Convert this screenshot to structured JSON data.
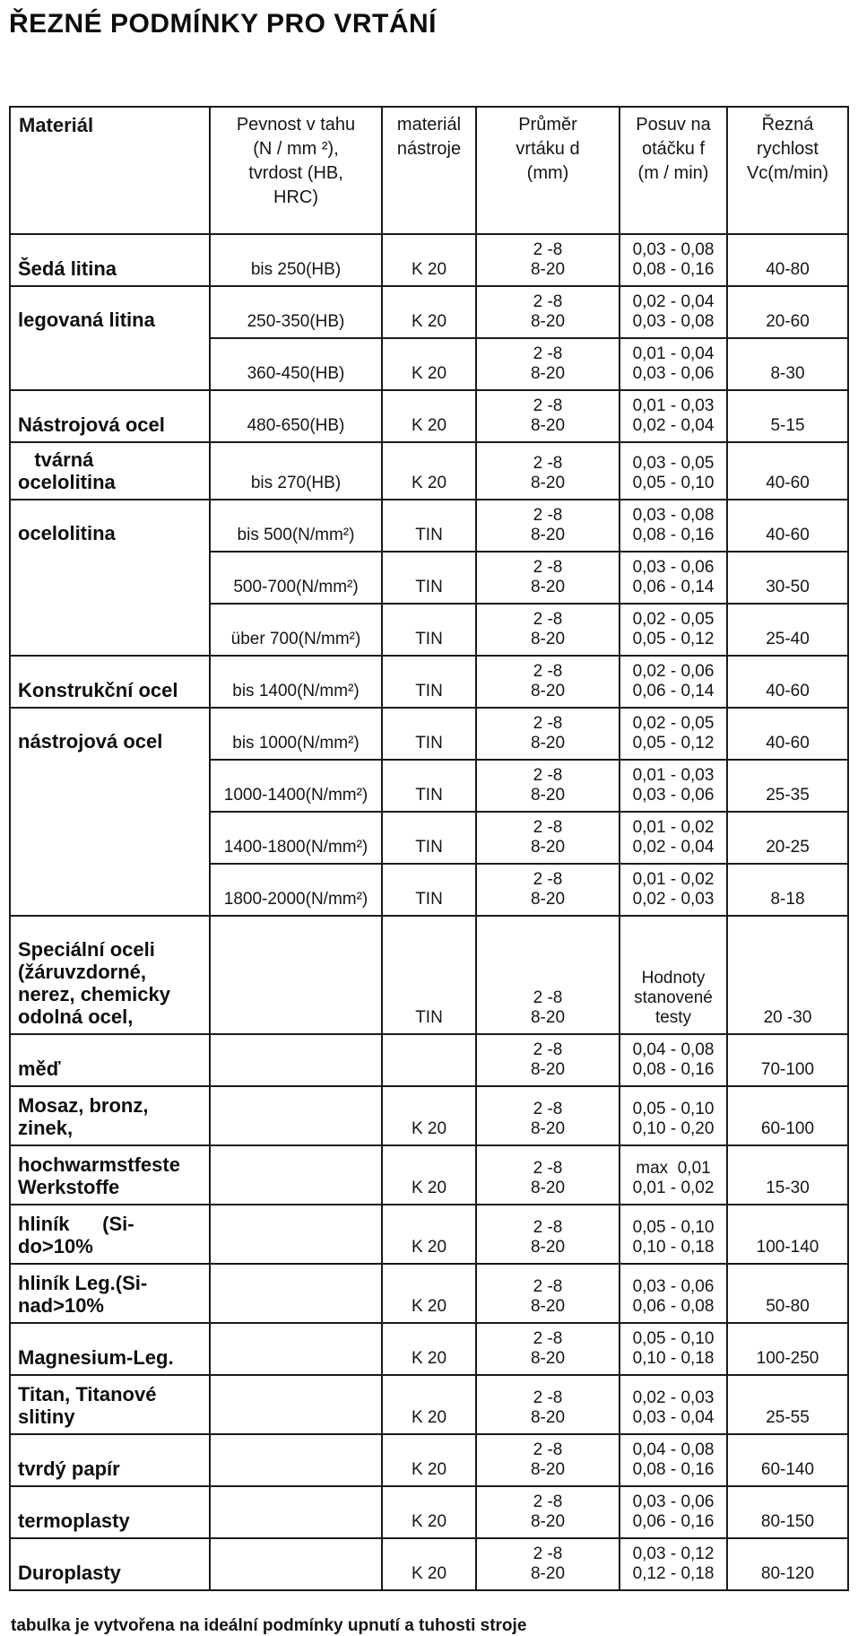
{
  "page": {
    "title": "ŘEZNÉ PODMÍNKY PRO VRTÁNÍ",
    "footnote": "tabulka je vytvořena na ideální podmínky upnutí a tuhosti stroje"
  },
  "table": {
    "headers": [
      {
        "id": "material",
        "label": "Materiál"
      },
      {
        "id": "tensile",
        "label": "Pevnost v tahu\n(N / mm ²),\ntvrdost (HB,\nHRC)"
      },
      {
        "id": "tool",
        "label": "materiál\nnástroje"
      },
      {
        "id": "diameter",
        "label": "Průměr\nvrtáku d\n(mm)"
      },
      {
        "id": "feed",
        "label": "Posuv na\notáčku f\n(m / min)"
      },
      {
        "id": "speed",
        "label": "Řezná\nrychlost\nVc(m/min)"
      }
    ],
    "rows": [
      {
        "material": "Šedá litina",
        "span": 1,
        "tensile": "bis 250(HB)",
        "tool": "K 20",
        "diameter": "2 -8\n8-20",
        "feed": "0,03 - 0,08\n0,08 - 0,16",
        "speed": "40-80"
      },
      {
        "material": "legovaná litina",
        "span": 2,
        "tensile": "250-350(HB)",
        "tool": "K 20",
        "diameter": "2 -8\n8-20",
        "feed": "0,02 - 0,04\n0,03 - 0,08",
        "speed": "20-60"
      },
      {
        "material": null,
        "tensile": "360-450(HB)",
        "tool": "K 20",
        "diameter": "2 -8\n8-20",
        "feed": "0,01 - 0,04\n0,03 - 0,06",
        "speed": "8-30"
      },
      {
        "material": "Nástrojová ocel",
        "span": 1,
        "tensile": "480-650(HB)",
        "tool": "K 20",
        "diameter": "2 -8\n8-20",
        "feed": "0,01 - 0,03\n0,02 - 0,04",
        "speed": "5-15"
      },
      {
        "material": "   tvárná\nocelolitina",
        "span": 1,
        "tensile": "bis 270(HB)",
        "tool": "K 20",
        "diameter": "2 -8\n8-20",
        "feed": "0,03 - 0,05\n0,05 - 0,10",
        "speed": "40-60"
      },
      {
        "material": "ocelolitina",
        "span": 3,
        "tensile": "bis 500(N/mm²)",
        "tool": "TIN",
        "diameter": "2 -8\n8-20",
        "feed": "0,03 - 0,08\n0,08 - 0,16",
        "speed": "40-60"
      },
      {
        "material": null,
        "tensile": "500-700(N/mm²)",
        "tool": "TIN",
        "diameter": "2 -8\n8-20",
        "feed": "0,03 - 0,06\n0,06 - 0,14",
        "speed": "30-50"
      },
      {
        "material": null,
        "tensile": "über 700(N/mm²)",
        "tool": "TIN",
        "diameter": "2 -8\n8-20",
        "feed": "0,02 - 0,05\n0,05 - 0,12",
        "speed": "25-40"
      },
      {
        "material": "Konstrukční ocel",
        "span": 1,
        "tensile": "bis 1400(N/mm²)",
        "tool": "TIN",
        "diameter": "2 -8\n8-20",
        "feed": "0,02 - 0,06\n0,06 - 0,14",
        "speed": "40-60"
      },
      {
        "material": "nástrojová ocel",
        "span": 4,
        "tensile": "bis 1000(N/mm²)",
        "tool": "TIN",
        "diameter": "2 -8\n8-20",
        "feed": "0,02 - 0,05\n0,05 - 0,12",
        "speed": "40-60"
      },
      {
        "material": null,
        "tensile": "1000-1400(N/mm²)",
        "tool": "TIN",
        "diameter": "2 -8\n8-20",
        "feed": "0,01 - 0,03\n0,03 - 0,06",
        "speed": "25-35"
      },
      {
        "material": null,
        "tensile": "1400-1800(N/mm²)",
        "tool": "TIN",
        "diameter": "2 -8\n8-20",
        "feed": "0,01 - 0,02\n0,02 - 0,04",
        "speed": "20-25"
      },
      {
        "material": null,
        "tensile": "1800-2000(N/mm²)",
        "tool": "TIN",
        "diameter": "2 -8\n8-20",
        "feed": "0,01 - 0,02\n0,02 - 0,03",
        "speed": "8-18"
      },
      {
        "material": "Speciální oceli\n(žáruvzdorné,\nnerez, chemicky\nodolná ocel,",
        "span": 1,
        "tensile": "",
        "tool": "TIN",
        "diameter": "2 -8\n8-20",
        "feed": "Hodnoty\nstanovené\ntesty",
        "speed": "20 -30"
      },
      {
        "material": "měď",
        "span": 1,
        "tensile": "",
        "tool": "",
        "diameter": "2 -8\n8-20",
        "feed": "0,04 - 0,08\n0,08 - 0,16",
        "speed": "70-100"
      },
      {
        "material": "Mosaz, bronz,\nzinek,",
        "span": 1,
        "tensile": "",
        "tool": "K 20",
        "diameter": "2 -8\n8-20",
        "feed": "0,05 - 0,10\n0,10 - 0,20",
        "speed": "60-100"
      },
      {
        "material": "hochwarmstfeste\nWerkstoffe",
        "span": 1,
        "tensile": "",
        "tool": "K 20",
        "diameter": "2 -8\n8-20",
        "feed": "max  0,01\n0,01 - 0,02",
        "speed": "15-30"
      },
      {
        "material": "hliník      (Si-\ndo>10%",
        "span": 1,
        "tensile": "",
        "tool": "K 20",
        "diameter": "2 -8\n8-20",
        "feed": "0,05 - 0,10\n0,10 - 0,18",
        "speed": "100-140"
      },
      {
        "material": "hliník Leg.(Si-\nnad>10%",
        "span": 1,
        "tensile": "",
        "tool": "K 20",
        "diameter": "2 -8\n8-20",
        "feed": "0,03 - 0,06\n0,06 - 0,08",
        "speed": "50-80"
      },
      {
        "material": "Magnesium-Leg.",
        "span": 1,
        "tensile": "",
        "tool": "K 20",
        "diameter": "2 -8\n8-20",
        "feed": "0,05 - 0,10\n0,10 - 0,18",
        "speed": "100-250"
      },
      {
        "material": "Titan, Titanové\nslitiny",
        "span": 1,
        "tensile": "",
        "tool": "K 20",
        "diameter": "2 -8\n8-20",
        "feed": "0,02 - 0,03\n0,03 - 0,04",
        "speed": "25-55"
      },
      {
        "material": "tvrdý papír",
        "span": 1,
        "tensile": "",
        "tool": "K 20",
        "diameter": "2 -8\n8-20",
        "feed": "0,04 - 0,08\n0,08 - 0,16",
        "speed": "60-140"
      },
      {
        "material": "termoplasty",
        "span": 1,
        "tensile": "",
        "tool": "K 20",
        "diameter": "2 -8\n8-20",
        "feed": "0,03 - 0,06\n0,06 - 0,16",
        "speed": "80-150"
      },
      {
        "material": "Duroplasty",
        "span": 1,
        "tensile": "",
        "tool": "K 20",
        "diameter": "2 -8\n8-20",
        "feed": "0,03 - 0,12\n0,12 - 0,18",
        "speed": "80-120"
      }
    ]
  }
}
